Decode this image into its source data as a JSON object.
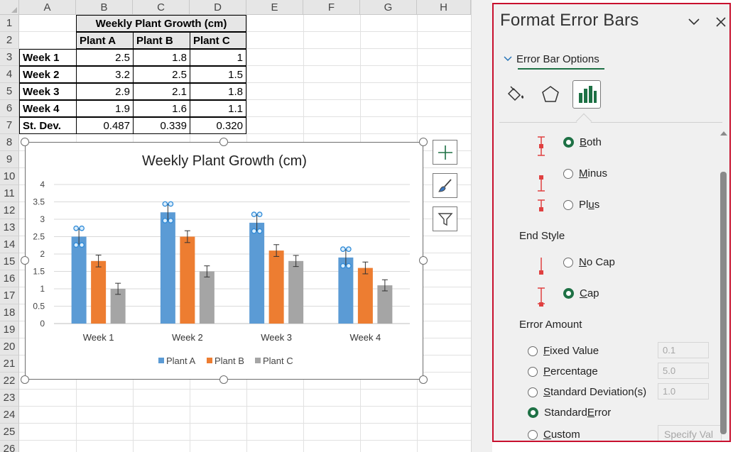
{
  "sheet": {
    "columns": [
      "A",
      "B",
      "C",
      "D",
      "E",
      "F",
      "G",
      "H"
    ],
    "rows": [
      "1",
      "2",
      "3",
      "4",
      "5",
      "6",
      "7",
      "8",
      "9",
      "10",
      "11",
      "12",
      "13",
      "14",
      "15",
      "16",
      "17",
      "18",
      "19",
      "20",
      "21",
      "22",
      "23",
      "24",
      "25",
      "26"
    ],
    "table": {
      "title": "Weekly Plant Growth (cm)",
      "headers": [
        "Plant A",
        "Plant B",
        "Plant C"
      ],
      "rows": [
        {
          "label": "Week 1",
          "a": "2.5",
          "b": "1.8",
          "c": "1"
        },
        {
          "label": "Week 2",
          "a": "3.2",
          "b": "2.5",
          "c": "1.5"
        },
        {
          "label": "Week 3",
          "a": "2.9",
          "b": "2.1",
          "c": "1.8"
        },
        {
          "label": "Week 4",
          "a": "1.9",
          "b": "1.6",
          "c": "1.1"
        },
        {
          "label": "St. Dev.",
          "a": "0.487",
          "b": "0.339",
          "c": "0.320"
        }
      ]
    }
  },
  "chart_data": {
    "type": "bar",
    "title": "Weekly Plant Growth (cm)",
    "categories": [
      "Week 1",
      "Week 2",
      "Week 3",
      "Week 4"
    ],
    "series": [
      {
        "name": "Plant A",
        "values": [
          2.5,
          3.2,
          2.9,
          1.9
        ],
        "color": "#5b9bd5",
        "error": 0.24
      },
      {
        "name": "Plant B",
        "values": [
          1.8,
          2.5,
          2.1,
          1.6
        ],
        "color": "#ed7d31",
        "error": 0.17
      },
      {
        "name": "Plant C",
        "values": [
          1.0,
          1.5,
          1.8,
          1.1
        ],
        "color": "#a5a5a5",
        "error": 0.16
      }
    ],
    "ylim": [
      0,
      4
    ],
    "yticks": [
      "0",
      "0.5",
      "1",
      "1.5",
      "2",
      "2.5",
      "3",
      "3.5",
      "4"
    ],
    "grid": true,
    "legend": "bottom",
    "selected_series": "Plant A"
  },
  "chart_tools": {
    "add_element_icon": "plus-icon",
    "style_icon": "brush-icon",
    "filter_icon": "filter-icon"
  },
  "panel": {
    "title": "Format Error Bars",
    "section": "Error Bar Options",
    "tabs": [
      "fill-line-icon",
      "effects-icon",
      "bar-options-icon"
    ],
    "direction": {
      "options": [
        {
          "label_pre": "",
          "label_u": "B",
          "label_post": "oth",
          "checked": true
        },
        {
          "label_pre": "",
          "label_u": "M",
          "label_post": "inus",
          "checked": false
        },
        {
          "label_pre": "Pl",
          "label_u": "u",
          "label_post": "s",
          "checked": false
        }
      ]
    },
    "end_style": {
      "heading": "End Style",
      "options": [
        {
          "label_pre": "",
          "label_u": "N",
          "label_post": "o Cap",
          "checked": false
        },
        {
          "label_pre": "",
          "label_u": "C",
          "label_post": "ap",
          "checked": true
        }
      ]
    },
    "error_amount": {
      "heading": "Error Amount",
      "options": [
        {
          "label_pre": "",
          "label_u": "F",
          "label_post": "ixed Value",
          "checked": false,
          "value": "0.1"
        },
        {
          "label_pre": "",
          "label_u": "P",
          "label_post": "ercentage",
          "checked": false,
          "value": "5.0"
        },
        {
          "label_pre": "",
          "label_u": "S",
          "label_post": "tandard Deviation(s)",
          "checked": false,
          "value": "1.0"
        },
        {
          "label_pre": "Standard ",
          "label_u": "E",
          "label_post": "rror",
          "checked": true
        },
        {
          "label_pre": "",
          "label_u": "C",
          "label_post": "ustom",
          "checked": false
        }
      ],
      "specify_value": "Specify Val"
    },
    "colors": {
      "accent": "#1e7145",
      "highlight_border": "#c8102e",
      "icon_red": "#e04040"
    }
  }
}
